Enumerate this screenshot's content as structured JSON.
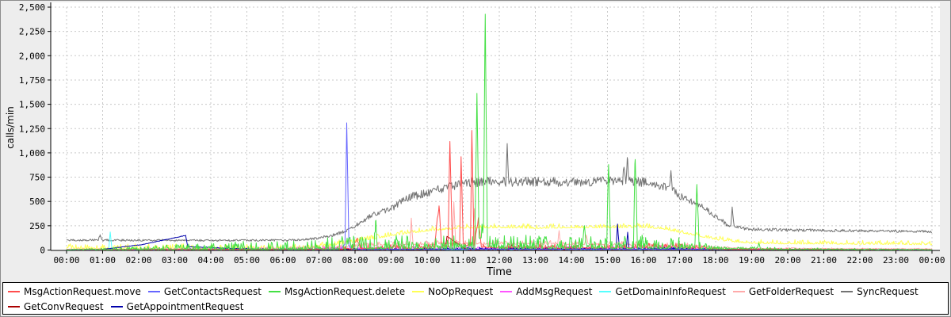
{
  "window": {
    "bg": "#ededed",
    "border_color": "#8c8c8c",
    "plot_bg": "#ffffff",
    "grid_color": "#c9c9c9",
    "axis_color": "#000000",
    "legend_border": "#000000",
    "legend_bg": "#ffffff"
  },
  "chart_data": {
    "type": "line",
    "title": "",
    "ylabel": "calls/min",
    "xlabel": "Time",
    "ylim": [
      0,
      2500
    ],
    "xlim_hours": [
      0,
      24
    ],
    "grid": true,
    "legend_position": "bottom",
    "y_ticks": [
      {
        "v": 0,
        "label": "0"
      },
      {
        "v": 250,
        "label": "250"
      },
      {
        "v": 500,
        "label": "500"
      },
      {
        "v": 750,
        "label": "750"
      },
      {
        "v": 1000,
        "label": "1,000"
      },
      {
        "v": 1250,
        "label": "1,250"
      },
      {
        "v": 1500,
        "label": "1,500"
      },
      {
        "v": 1750,
        "label": "1,750"
      },
      {
        "v": 2000,
        "label": "2,000"
      },
      {
        "v": 2250,
        "label": "2,250"
      },
      {
        "v": 2500,
        "label": "2,500"
      }
    ],
    "x_ticks": [
      {
        "h": 0,
        "label": "00:00"
      },
      {
        "h": 1,
        "label": "01:00"
      },
      {
        "h": 2,
        "label": "02:00"
      },
      {
        "h": 3,
        "label": "03:00"
      },
      {
        "h": 4,
        "label": "04:00"
      },
      {
        "h": 5,
        "label": "05:00"
      },
      {
        "h": 6,
        "label": "06:00"
      },
      {
        "h": 7,
        "label": "07:00"
      },
      {
        "h": 8,
        "label": "08:00"
      },
      {
        "h": 9,
        "label": "09:00"
      },
      {
        "h": 10,
        "label": "10:00"
      },
      {
        "h": 11,
        "label": "11:00"
      },
      {
        "h": 12,
        "label": "12:00"
      },
      {
        "h": 13,
        "label": "13:00"
      },
      {
        "h": 14,
        "label": "14:00"
      },
      {
        "h": 15,
        "label": "15:00"
      },
      {
        "h": 16,
        "label": "16:00"
      },
      {
        "h": 17,
        "label": "17:00"
      },
      {
        "h": 18,
        "label": "18:00"
      },
      {
        "h": 19,
        "label": "19:00"
      },
      {
        "h": 20,
        "label": "20:00"
      },
      {
        "h": 21,
        "label": "21:00"
      },
      {
        "h": 22,
        "label": "22:00"
      },
      {
        "h": 23,
        "label": "23:00"
      },
      {
        "h": 24,
        "label": "00:00"
      }
    ],
    "draw_order": [
      7,
      3,
      6,
      4,
      5,
      8,
      9,
      1,
      0,
      2
    ],
    "series": [
      {
        "name": "MsgActionRequest.move",
        "color": "#ff4d4d",
        "noise_mode": "up",
        "anchors": [
          [
            0,
            4
          ],
          [
            7,
            6
          ],
          [
            7.95,
            8
          ],
          [
            8.05,
            110
          ],
          [
            8.15,
            10
          ],
          [
            9,
            14
          ],
          [
            10.2,
            18
          ],
          [
            10.33,
            445
          ],
          [
            10.4,
            22
          ],
          [
            10.58,
            30
          ],
          [
            10.63,
            1110
          ],
          [
            10.7,
            35
          ],
          [
            10.9,
            40
          ],
          [
            10.94,
            960
          ],
          [
            11,
            40
          ],
          [
            11.2,
            50
          ],
          [
            11.24,
            1200
          ],
          [
            11.3,
            45
          ],
          [
            11.42,
            300
          ],
          [
            11.5,
            25
          ],
          [
            12,
            20
          ],
          [
            14,
            16
          ],
          [
            16,
            22
          ],
          [
            16.9,
            28
          ],
          [
            17.5,
            14
          ],
          [
            18,
            8
          ],
          [
            19,
            4
          ],
          [
            24,
            3
          ]
        ],
        "noise": [
          [
            0,
            4
          ],
          [
            7,
            10
          ],
          [
            8,
            45
          ],
          [
            17,
            45
          ],
          [
            18,
            15
          ],
          [
            24,
            6
          ]
        ]
      },
      {
        "name": "GetContactsRequest",
        "color": "#6666ff",
        "noise_mode": "up",
        "anchors": [
          [
            0,
            3
          ],
          [
            7.6,
            4
          ],
          [
            7.72,
            60
          ],
          [
            7.77,
            1300
          ],
          [
            7.83,
            50
          ],
          [
            7.9,
            6
          ],
          [
            12,
            6
          ],
          [
            18,
            5
          ],
          [
            24,
            3
          ]
        ],
        "noise": [
          [
            0,
            3
          ],
          [
            8,
            10
          ],
          [
            18,
            8
          ],
          [
            24,
            3
          ]
        ]
      },
      {
        "name": "MsgActionRequest.delete",
        "color": "#44e044",
        "noise_mode": "up",
        "anchors": [
          [
            0,
            2
          ],
          [
            7,
            3
          ],
          [
            8,
            8
          ],
          [
            8.53,
            10
          ],
          [
            8.57,
            250
          ],
          [
            8.62,
            10
          ],
          [
            10,
            12
          ],
          [
            11.32,
            12
          ],
          [
            11.38,
            1600
          ],
          [
            11.44,
            100
          ],
          [
            11.56,
            150
          ],
          [
            11.61,
            2420
          ],
          [
            11.67,
            40
          ],
          [
            12,
            14
          ],
          [
            14.3,
            15
          ],
          [
            14.36,
            220
          ],
          [
            14.42,
            14
          ],
          [
            14.98,
            18
          ],
          [
            15.03,
            880
          ],
          [
            15.09,
            14
          ],
          [
            15.72,
            16
          ],
          [
            15.77,
            930
          ],
          [
            15.83,
            14
          ],
          [
            17.43,
            16
          ],
          [
            17.48,
            670
          ],
          [
            17.54,
            10
          ],
          [
            18,
            8
          ],
          [
            19.15,
            10
          ],
          [
            19.2,
            60
          ],
          [
            19.25,
            5
          ],
          [
            24,
            2
          ]
        ],
        "noise": [
          [
            0,
            3
          ],
          [
            8,
            140
          ],
          [
            17,
            140
          ],
          [
            18,
            30
          ],
          [
            24,
            5
          ]
        ]
      },
      {
        "name": "NoOpRequest",
        "color": "#ffff55",
        "noise_mode": "up",
        "anchors": [
          [
            0,
            12
          ],
          [
            6.5,
            12
          ],
          [
            7,
            28
          ],
          [
            8,
            80
          ],
          [
            9,
            145
          ],
          [
            10,
            195
          ],
          [
            11,
            225
          ],
          [
            12,
            228
          ],
          [
            13,
            222
          ],
          [
            14,
            228
          ],
          [
            15,
            228
          ],
          [
            16,
            232
          ],
          [
            16.5,
            218
          ],
          [
            17,
            180
          ],
          [
            17.5,
            145
          ],
          [
            18,
            105
          ],
          [
            18.5,
            82
          ],
          [
            19,
            68
          ],
          [
            20,
            62
          ],
          [
            21,
            62
          ],
          [
            22,
            58
          ],
          [
            23,
            58
          ],
          [
            24,
            52
          ]
        ],
        "noise": [
          [
            0,
            55
          ],
          [
            7,
            50
          ],
          [
            9,
            45
          ],
          [
            24,
            45
          ]
        ]
      },
      {
        "name": "AddMsgRequest",
        "color": "#ff55ff",
        "noise_mode": "up",
        "anchors": [
          [
            0,
            3
          ],
          [
            7,
            4
          ],
          [
            8,
            10
          ],
          [
            12,
            13
          ],
          [
            16,
            13
          ],
          [
            18,
            7
          ],
          [
            24,
            3
          ]
        ],
        "noise": [
          [
            0,
            4
          ],
          [
            8,
            30
          ],
          [
            17,
            30
          ],
          [
            18,
            8
          ],
          [
            24,
            4
          ]
        ]
      },
      {
        "name": "GetDomainInfoRequest",
        "color": "#55ffff",
        "noise_mode": "up",
        "anchors": [
          [
            0,
            4
          ],
          [
            1.17,
            4
          ],
          [
            1.21,
            185
          ],
          [
            1.26,
            4
          ],
          [
            24,
            4
          ]
        ],
        "noise": [
          [
            0,
            5
          ],
          [
            24,
            5
          ]
        ]
      },
      {
        "name": "GetFolderRequest",
        "color": "#ffaaaa",
        "noise_mode": "up",
        "anchors": [
          [
            0,
            8
          ],
          [
            6.5,
            8
          ],
          [
            7,
            14
          ],
          [
            8,
            38
          ],
          [
            9,
            52
          ],
          [
            9.52,
            55
          ],
          [
            9.56,
            295
          ],
          [
            9.61,
            52
          ],
          [
            10.5,
            60
          ],
          [
            10.7,
            65
          ],
          [
            10.74,
            490
          ],
          [
            10.79,
            60
          ],
          [
            11.27,
            60
          ],
          [
            11.31,
            420
          ],
          [
            11.36,
            58
          ],
          [
            12,
            62
          ],
          [
            13,
            58
          ],
          [
            13.62,
            60
          ],
          [
            13.66,
            200
          ],
          [
            13.7,
            52
          ],
          [
            14.37,
            55
          ],
          [
            14.41,
            150
          ],
          [
            14.46,
            52
          ],
          [
            15,
            52
          ],
          [
            16,
            48
          ],
          [
            17,
            42
          ],
          [
            18,
            24
          ],
          [
            19,
            14
          ],
          [
            24,
            10
          ]
        ],
        "noise": [
          [
            0,
            6
          ],
          [
            8,
            40
          ],
          [
            17,
            40
          ],
          [
            18,
            14
          ],
          [
            24,
            8
          ]
        ]
      },
      {
        "name": "SyncRequest",
        "color": "#737373",
        "noise_mode": "sym",
        "anchors": [
          [
            0,
            100
          ],
          [
            0.88,
            105
          ],
          [
            0.93,
            160
          ],
          [
            0.98,
            103
          ],
          [
            2,
            100
          ],
          [
            3,
            102
          ],
          [
            4,
            99
          ],
          [
            5,
            100
          ],
          [
            6,
            101
          ],
          [
            6.5,
            104
          ],
          [
            7,
            124
          ],
          [
            7.5,
            163
          ],
          [
            8,
            248
          ],
          [
            8.5,
            368
          ],
          [
            9,
            428
          ],
          [
            9.5,
            542
          ],
          [
            10,
            588
          ],
          [
            10.5,
            642
          ],
          [
            11,
            688
          ],
          [
            11.5,
            702
          ],
          [
            12,
            708
          ],
          [
            12.18,
            700
          ],
          [
            12.22,
            1050
          ],
          [
            12.27,
            698
          ],
          [
            13,
            703
          ],
          [
            14,
            700
          ],
          [
            15,
            708
          ],
          [
            15.42,
            715
          ],
          [
            15.46,
            888
          ],
          [
            15.51,
            718
          ],
          [
            15.55,
            945
          ],
          [
            15.6,
            715
          ],
          [
            16,
            698
          ],
          [
            16.4,
            668
          ],
          [
            16.72,
            635
          ],
          [
            16.76,
            815
          ],
          [
            16.8,
            625
          ],
          [
            17,
            558
          ],
          [
            17.4,
            488
          ],
          [
            17.7,
            428
          ],
          [
            18,
            348
          ],
          [
            18.3,
            268
          ],
          [
            18.42,
            242
          ],
          [
            18.46,
            428
          ],
          [
            18.51,
            238
          ],
          [
            19,
            213
          ],
          [
            20,
            205
          ],
          [
            21,
            203
          ],
          [
            22,
            199
          ],
          [
            23,
            194
          ],
          [
            24,
            190
          ]
        ],
        "noise": [
          [
            0,
            20
          ],
          [
            6.5,
            20
          ],
          [
            7,
            25
          ],
          [
            8,
            45
          ],
          [
            9,
            70
          ],
          [
            10,
            90
          ],
          [
            11,
            95
          ],
          [
            16,
            95
          ],
          [
            17,
            75
          ],
          [
            18,
            50
          ],
          [
            19,
            32
          ],
          [
            24,
            24
          ]
        ]
      },
      {
        "name": "GetConvRequest",
        "color": "#aa0000",
        "noise_mode": "up",
        "anchors": [
          [
            0,
            2
          ],
          [
            10.5,
            4
          ],
          [
            10.55,
            140
          ],
          [
            11.05,
            14
          ],
          [
            11.12,
            4
          ],
          [
            12.3,
            4
          ],
          [
            12.35,
            60
          ],
          [
            12.4,
            4
          ],
          [
            16,
            5
          ],
          [
            24,
            2
          ]
        ],
        "noise": [
          [
            0,
            3
          ],
          [
            8,
            8
          ],
          [
            18,
            5
          ],
          [
            24,
            3
          ]
        ]
      },
      {
        "name": "GetAppointmentRequest",
        "color": "#0000aa",
        "noise_mode": "up",
        "anchors": [
          [
            0,
            2
          ],
          [
            0.9,
            2
          ],
          [
            2.1,
            55
          ],
          [
            3.3,
            148
          ],
          [
            3.36,
            34
          ],
          [
            4.2,
            20
          ],
          [
            5.2,
            6
          ],
          [
            6,
            3
          ],
          [
            8,
            5
          ],
          [
            12,
            7
          ],
          [
            15.24,
            8
          ],
          [
            15.28,
            255
          ],
          [
            15.33,
            8
          ],
          [
            15.52,
            8
          ],
          [
            15.56,
            180
          ],
          [
            15.6,
            8
          ],
          [
            17,
            7
          ],
          [
            18,
            5
          ],
          [
            24,
            2
          ]
        ],
        "noise": [
          [
            0,
            2
          ],
          [
            8,
            15
          ],
          [
            12,
            25
          ],
          [
            17,
            25
          ],
          [
            18,
            6
          ],
          [
            24,
            3
          ]
        ]
      }
    ]
  }
}
